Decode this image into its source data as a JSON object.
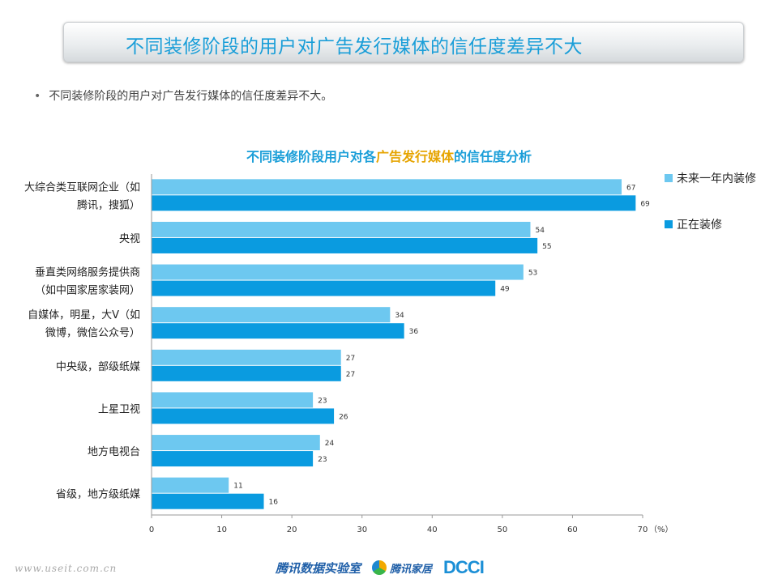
{
  "header": {
    "title": "不同装修阶段的用户对广告发行媒体的信任度差异不大"
  },
  "bullet": {
    "text": "不同装修阶段的用户对广告发行媒体的信任度差异不大。"
  },
  "chart_title": {
    "part1": "不同装修阶段用户对各",
    "part2": "广告发行媒体",
    "part3": "的信任度分析"
  },
  "footer": {
    "website": "www.useit.com.cn",
    "logo1": "腾讯数据实验室",
    "logo2": "腾讯家居",
    "logo3": "DCCI"
  },
  "colors": {
    "series1": "#6dc8f0",
    "series2": "#0a9be0",
    "title": "#1a9ed8",
    "highlight": "#e6a400"
  },
  "chart_data": {
    "type": "bar",
    "orientation": "horizontal",
    "categories": [
      [
        "大综合类互联网企业（如",
        "腾讯，搜狐）"
      ],
      [
        "央视"
      ],
      [
        "垂直类网络服务提供商",
        "（如中国家居家装网）"
      ],
      [
        "自媒体，明星，大V（如",
        "微博，微信公众号）"
      ],
      [
        "中央级，部级纸媒"
      ],
      [
        "上星卫视"
      ],
      [
        "地方电视台"
      ],
      [
        "省级，地方级纸媒"
      ]
    ],
    "series": [
      {
        "name": "未来一年内装修",
        "values": [
          67,
          54,
          53,
          34,
          27,
          23,
          24,
          11
        ]
      },
      {
        "name": "正在装修",
        "values": [
          69,
          55,
          49,
          36,
          27,
          26,
          23,
          16
        ]
      }
    ],
    "xlim": [
      0,
      70
    ],
    "xticks": [
      0,
      10,
      20,
      30,
      40,
      50,
      60,
      70
    ],
    "xunit": "（%）",
    "legend_position": "right"
  }
}
